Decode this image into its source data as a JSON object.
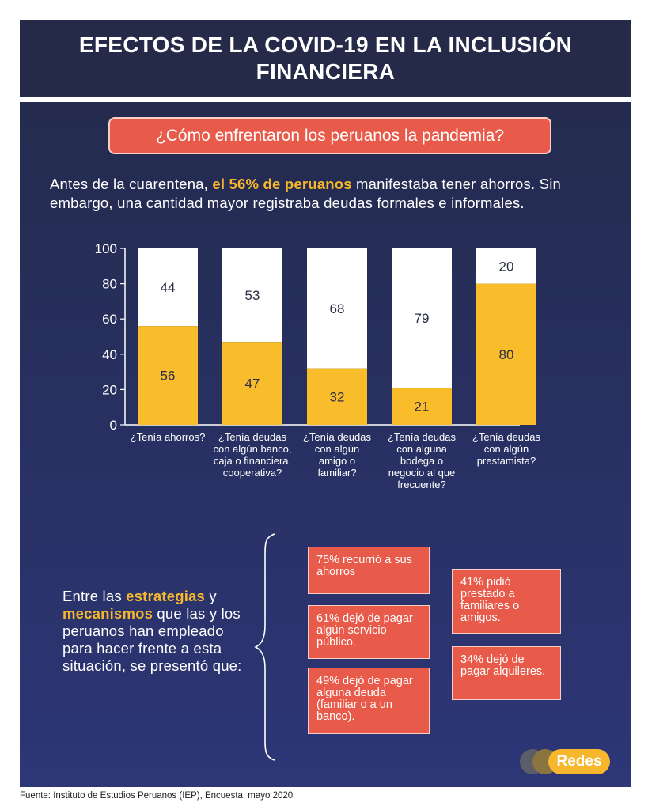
{
  "title": "EFECTOS DE LA COVID-19 EN LA INCLUSIÓN FINANCIERA",
  "subtitle": "¿Cómo enfrentaron los peruanos la pandemia?",
  "intro": {
    "part1": "Antes de la cuarentena, ",
    "highlight": "el 56% de peruanos",
    "part2": " manifestaba tener ahorros. Sin embargo, una cantidad mayor registraba deudas formales e informales."
  },
  "colors": {
    "header": "#242a48",
    "accent_red": "#e85a4a",
    "bar_yes": "#f9bd2b",
    "bar_no": "#ffffff",
    "highlight": "#f6b72c"
  },
  "chart_data": {
    "type": "bar",
    "stacked": true,
    "ylim": [
      0,
      100
    ],
    "yticks": [
      0,
      20,
      40,
      60,
      80,
      100
    ],
    "categories": [
      "¿Tenía ahorros?",
      "¿Tenía deudas con algún banco, caja o financiera, cooperativa?",
      "¿Tenía deudas con algún amigo o familiar?",
      "¿Tenía deudas con alguna bodega o negocio al que frecuente?",
      "¿Tenía deudas con algún prestamista?"
    ],
    "series": [
      {
        "color": "#f9bd2b",
        "values": [
          56,
          47,
          32,
          21,
          80
        ]
      },
      {
        "color": "#ffffff",
        "values": [
          44,
          53,
          68,
          79,
          20
        ]
      }
    ],
    "grid": false,
    "legend": "none"
  },
  "strategies": {
    "t1": "Entre las ",
    "h1": "estrategias",
    "t2": " y ",
    "h2": "mecanismos",
    "t3": " que las y los peruanos han empleado para hacer frente a esta situación, se presentó que:"
  },
  "stats": [
    "75% recurrió a sus ahorros",
    "61% dejó de pagar algún servicio público.",
    "49% dejó de pagar alguna deuda (familiar o a un banco).",
    "41% pidió prestado a familiares o amigos.",
    "34% dejó de pagar alquileres."
  ],
  "logo_text": "Redes",
  "source": "Fuente:  Instituto de Estudios Peruanos (IEP), Encuesta, mayo 2020"
}
